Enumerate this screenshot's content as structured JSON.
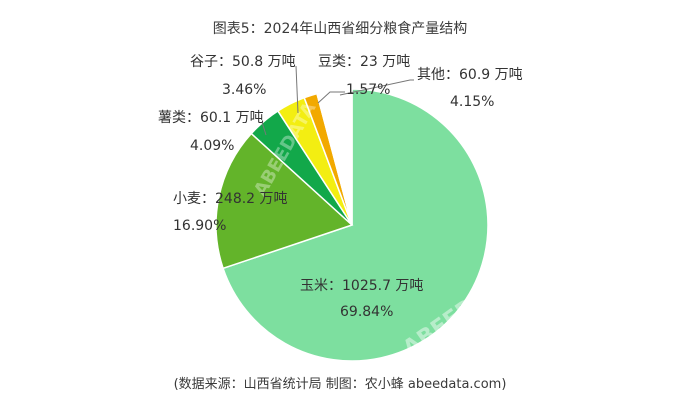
{
  "chart_data": {
    "type": "pie",
    "title": "图表5：2024年山西省细分粮食产量结构",
    "source": "(数据来源：山西省统计局   制图：农小蜂 abeedata.com)",
    "watermark": "ABEEDATA",
    "slices": [
      {
        "name": "玉米",
        "value": 1025.7,
        "unit": "万吨",
        "label": "玉米：1025.7 万吨",
        "percent": "69.84%",
        "color": "#7ddf9f"
      },
      {
        "name": "小麦",
        "value": 248.2,
        "unit": "万吨",
        "label": "小麦：248.2 万吨",
        "percent": "16.90%",
        "color": "#63b42a"
      },
      {
        "name": "薯类",
        "value": 60.1,
        "unit": "万吨",
        "label": "薯类：60.1 万吨",
        "percent": "4.09%",
        "color": "#12a84a"
      },
      {
        "name": "谷子",
        "value": 50.8,
        "unit": "万吨",
        "label": "谷子：50.8 万吨",
        "percent": "3.46%",
        "color": "#f3ee12"
      },
      {
        "name": "豆类",
        "value": 23,
        "unit": "万吨",
        "label": "豆类：23 万吨",
        "percent": "1.57%",
        "color": "#f2a900"
      },
      {
        "name": "其他",
        "value": 60.9,
        "unit": "万吨",
        "label": "其他：60.9 万吨",
        "percent": "4.15%",
        "color": "#ffffff"
      }
    ]
  }
}
